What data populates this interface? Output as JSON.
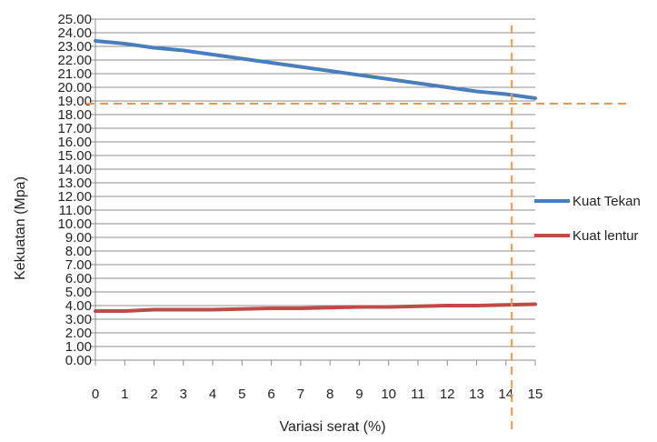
{
  "chart_data": {
    "type": "line",
    "title": "",
    "xlabel": "Variasi serat (%)",
    "ylabel": "Kekuatan (Mpa)",
    "x": [
      0,
      1,
      2,
      3,
      4,
      5,
      6,
      7,
      8,
      9,
      10,
      11,
      12,
      13,
      14,
      15
    ],
    "x_tick_labels": [
      "0",
      "1",
      "2",
      "3",
      "4",
      "5",
      "6",
      "7",
      "8",
      "9",
      "10",
      "11",
      "12",
      "13",
      "14",
      "15"
    ],
    "xlim": [
      0,
      15
    ],
    "ylim": [
      0,
      25
    ],
    "y_tick_labels": [
      "0.00",
      "1.00",
      "2.00",
      "3.00",
      "4.00",
      "5.00",
      "6.00",
      "7.00",
      "8.00",
      "9.00",
      "10.00",
      "11.00",
      "12.00",
      "13.00",
      "14.00",
      "15.00",
      "16.00",
      "17.00",
      "18.00",
      "19.00",
      "20.00",
      "21.00",
      "22.00",
      "23.00",
      "24.00",
      "25.00"
    ],
    "grid": true,
    "legend_position": "right",
    "series": [
      {
        "name": "Kuat Tekan",
        "color": "#4a7ebb",
        "values": [
          23.4,
          23.2,
          22.9,
          22.7,
          22.4,
          22.1,
          21.8,
          21.5,
          21.2,
          20.9,
          20.6,
          20.3,
          20.0,
          19.7,
          19.5,
          19.2
        ]
      },
      {
        "name": "Kuat lentur",
        "color": "#be4b48",
        "values": [
          3.6,
          3.6,
          3.7,
          3.7,
          3.7,
          3.75,
          3.8,
          3.8,
          3.85,
          3.9,
          3.9,
          3.95,
          4.0,
          4.0,
          4.05,
          4.1
        ]
      }
    ],
    "reference_lines": [
      {
        "orientation": "horizontal",
        "y": 18.8,
        "color": "#f79646",
        "style": "dashed"
      },
      {
        "orientation": "vertical",
        "x": 14.2,
        "color": "#f79646",
        "style": "dashed"
      }
    ]
  }
}
